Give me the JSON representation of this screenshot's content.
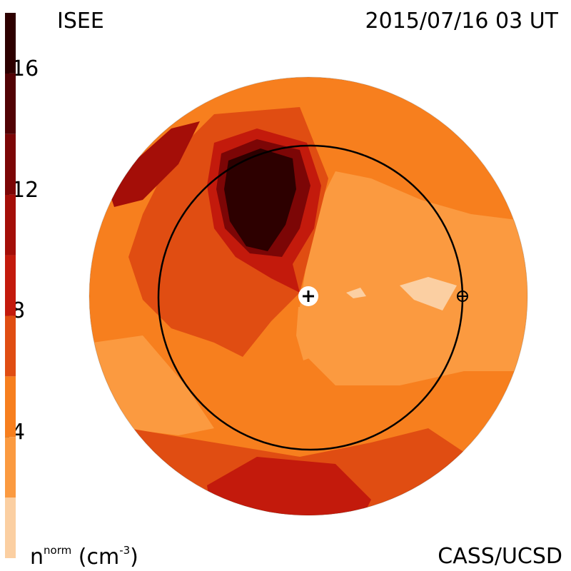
{
  "header": {
    "left": "ISEE",
    "right": "2015/07/16 03 UT"
  },
  "footer": {
    "right": "CASS/UCSD",
    "unit_main": "n",
    "unit_sup": "norm",
    "unit_tail": " (cm",
    "unit_exp": "-3",
    "unit_close": ")"
  },
  "chart_data": {
    "type": "heatmap",
    "title": "ISEE",
    "timestamp": "2015/07/16 03 UT",
    "quantity": "n^norm (cm^-3)",
    "colorbar": {
      "min": 0,
      "max": 18,
      "levels": [
        {
          "from": 0,
          "to": 2,
          "color": "#fbcfa2"
        },
        {
          "from": 2,
          "to": 4,
          "color": "#fb9a40"
        },
        {
          "from": 4,
          "to": 6,
          "color": "#f77f1e"
        },
        {
          "from": 6,
          "to": 8,
          "color": "#e04d12"
        },
        {
          "from": 8,
          "to": 10,
          "color": "#c31a0c"
        },
        {
          "from": 10,
          "to": 12,
          "color": "#a40e08"
        },
        {
          "from": 12,
          "to": 14,
          "color": "#7c0606"
        },
        {
          "from": 14,
          "to": 16,
          "color": "#520305"
        },
        {
          "from": 16,
          "to": 18,
          "color": "#2d0000"
        }
      ],
      "ticks": [
        {
          "value": 4,
          "label": "4"
        },
        {
          "value": 8,
          "label": "8"
        },
        {
          "value": 12,
          "label": "12"
        },
        {
          "value": 16,
          "label": "16"
        }
      ]
    },
    "features": [
      {
        "name": "dense-region",
        "approx_value": 17
      },
      {
        "name": "sun-marker",
        "symbol": "+"
      },
      {
        "name": "earth-marker",
        "symbol": "⊕"
      },
      {
        "name": "earth-orbit"
      }
    ]
  }
}
